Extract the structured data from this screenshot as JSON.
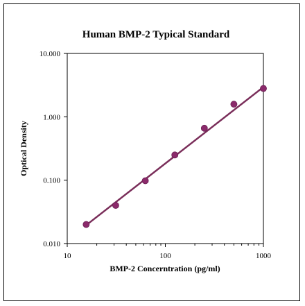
{
  "chart_data": {
    "type": "scatter",
    "title": "Human BMP-2 Typical Standard",
    "xlabel": "BMP-2 Concerntration (pg/ml)",
    "ylabel": "Optical Density",
    "x_scale": "log",
    "y_scale": "log",
    "xlim": [
      10,
      1000
    ],
    "ylim": [
      0.01,
      10
    ],
    "x_ticks": [
      {
        "value": 10,
        "label": "10"
      },
      {
        "value": 100,
        "label": "100"
      },
      {
        "value": 1000,
        "label": "1000"
      }
    ],
    "y_ticks": [
      {
        "value": 0.01,
        "label": "0.010"
      },
      {
        "value": 0.1,
        "label": "0.100"
      },
      {
        "value": 1,
        "label": "1.000"
      },
      {
        "value": 10,
        "label": "10.000"
      }
    ],
    "grid": false,
    "legend": "none",
    "series": [
      {
        "points": [
          {
            "x": 15.6,
            "y": 0.02
          },
          {
            "x": 31.2,
            "y": 0.04
          },
          {
            "x": 62.5,
            "y": 0.098
          },
          {
            "x": 125,
            "y": 0.25
          },
          {
            "x": 250,
            "y": 0.66
          },
          {
            "x": 500,
            "y": 1.58
          },
          {
            "x": 1000,
            "y": 2.8
          }
        ],
        "color": "#8b2a6b"
      }
    ],
    "fit_line": {
      "x_start": 15.6,
      "y_start": 0.0195,
      "x_end": 1000,
      "y_end": 2.95,
      "color": "#7a2e5a"
    }
  }
}
